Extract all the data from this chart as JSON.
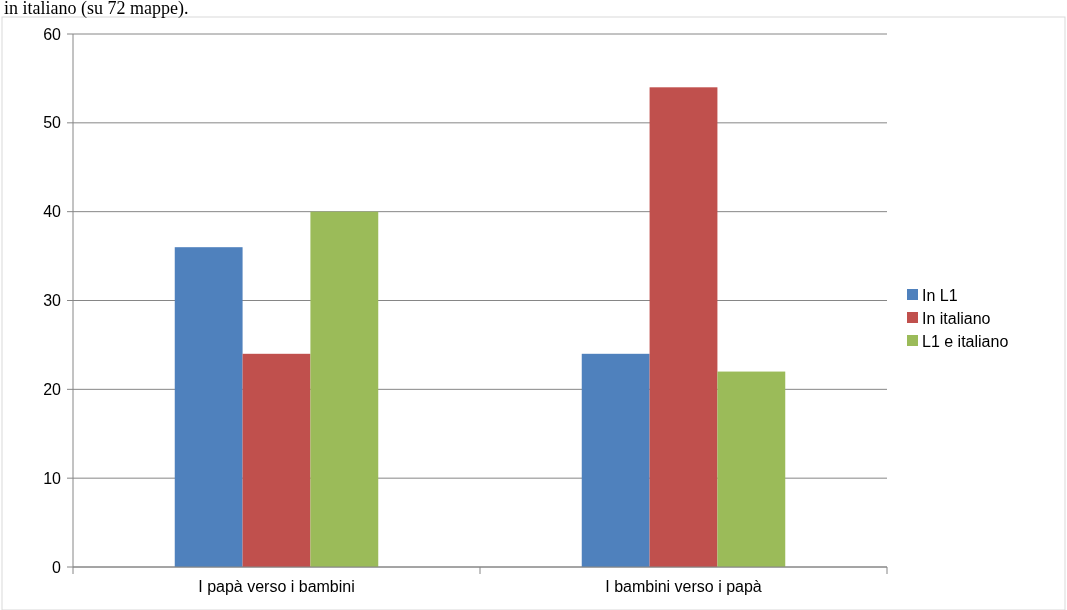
{
  "chart_data": {
    "type": "bar",
    "annotations": [
      "in italiano (su 72 mappe)."
    ],
    "categories": [
      "I papà verso i bambini",
      "I bambini verso i papà"
    ],
    "series": [
      {
        "name": "In L1",
        "color": "#4f81bd",
        "values": [
          36,
          24
        ]
      },
      {
        "name": "In italiano",
        "color": "#c0504d",
        "values": [
          24,
          54
        ]
      },
      {
        "name": "L1  e italiano",
        "color": "#9bbb59",
        "values": [
          40,
          22
        ]
      }
    ],
    "ylim": [
      0,
      60
    ],
    "yticks": [
      0,
      10,
      20,
      30,
      40,
      50,
      60
    ],
    "grid": "y",
    "legend": "right"
  }
}
